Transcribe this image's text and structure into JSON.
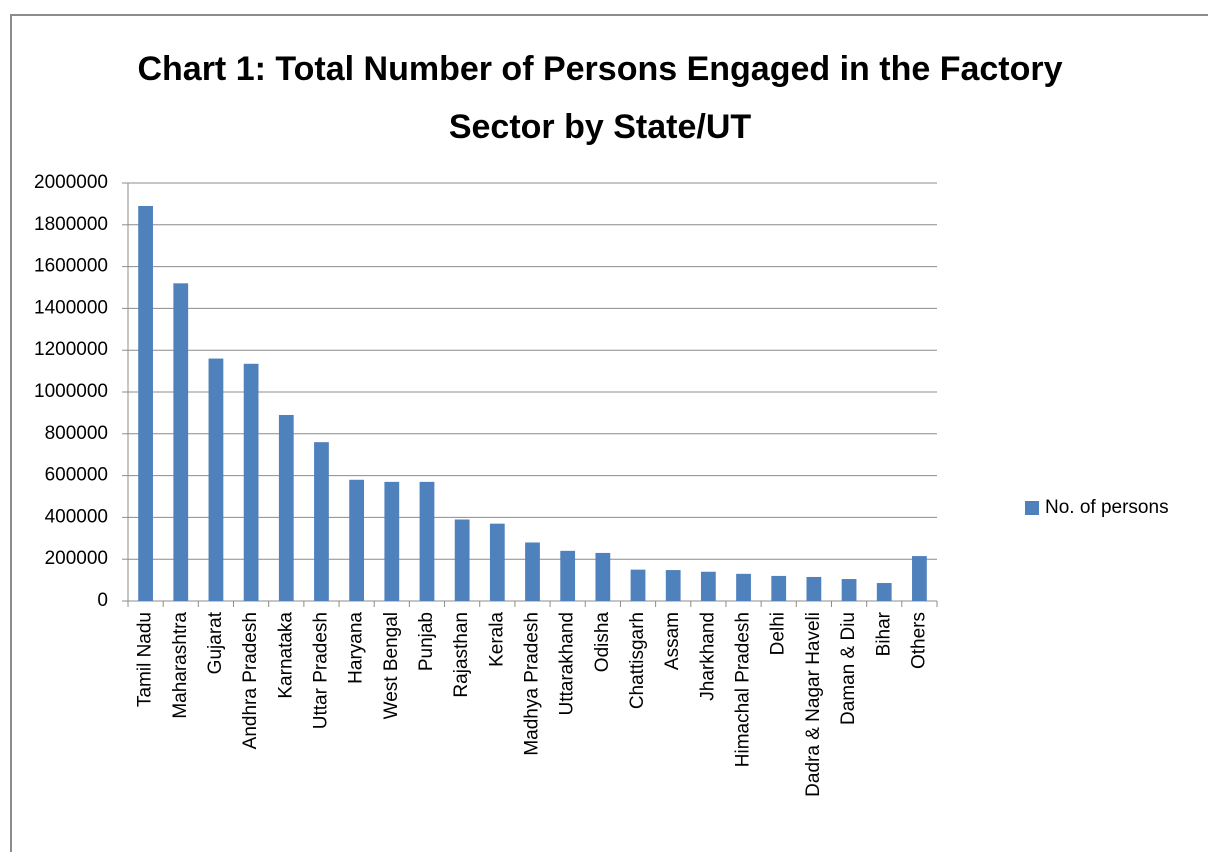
{
  "chart_data": {
    "type": "bar",
    "title": "Chart 1: Total Number of Persons Engaged in the Factory Sector by State/UT",
    "categories": [
      "Tamil Nadu",
      "Maharashtra",
      "Gujarat",
      "Andhra Pradesh",
      "Karnataka",
      "Uttar Pradesh",
      "Haryana",
      "West Bengal",
      "Punjab",
      "Rajasthan",
      "Kerala",
      "Madhya Pradesh",
      "Uttarakhand",
      "Odisha",
      "Chattisgarh",
      "Assam",
      "Jharkhand",
      "Himachal Pradesh",
      "Delhi",
      "Dadra & Nagar Haveli",
      "Daman & Diu",
      "Bihar",
      "Others"
    ],
    "series": [
      {
        "name": "No. of persons",
        "color": "#4f81bd",
        "values": [
          1890000,
          1520000,
          1160000,
          1135000,
          890000,
          760000,
          580000,
          570000,
          570000,
          390000,
          370000,
          280000,
          240000,
          230000,
          150000,
          148000,
          140000,
          130000,
          120000,
          115000,
          105000,
          86000,
          215000
        ]
      }
    ],
    "ylim": [
      0,
      2000000
    ],
    "yticks": [
      0,
      200000,
      400000,
      600000,
      800000,
      1000000,
      1200000,
      1400000,
      1600000,
      1800000,
      2000000
    ],
    "grid": true,
    "legend": "right"
  }
}
